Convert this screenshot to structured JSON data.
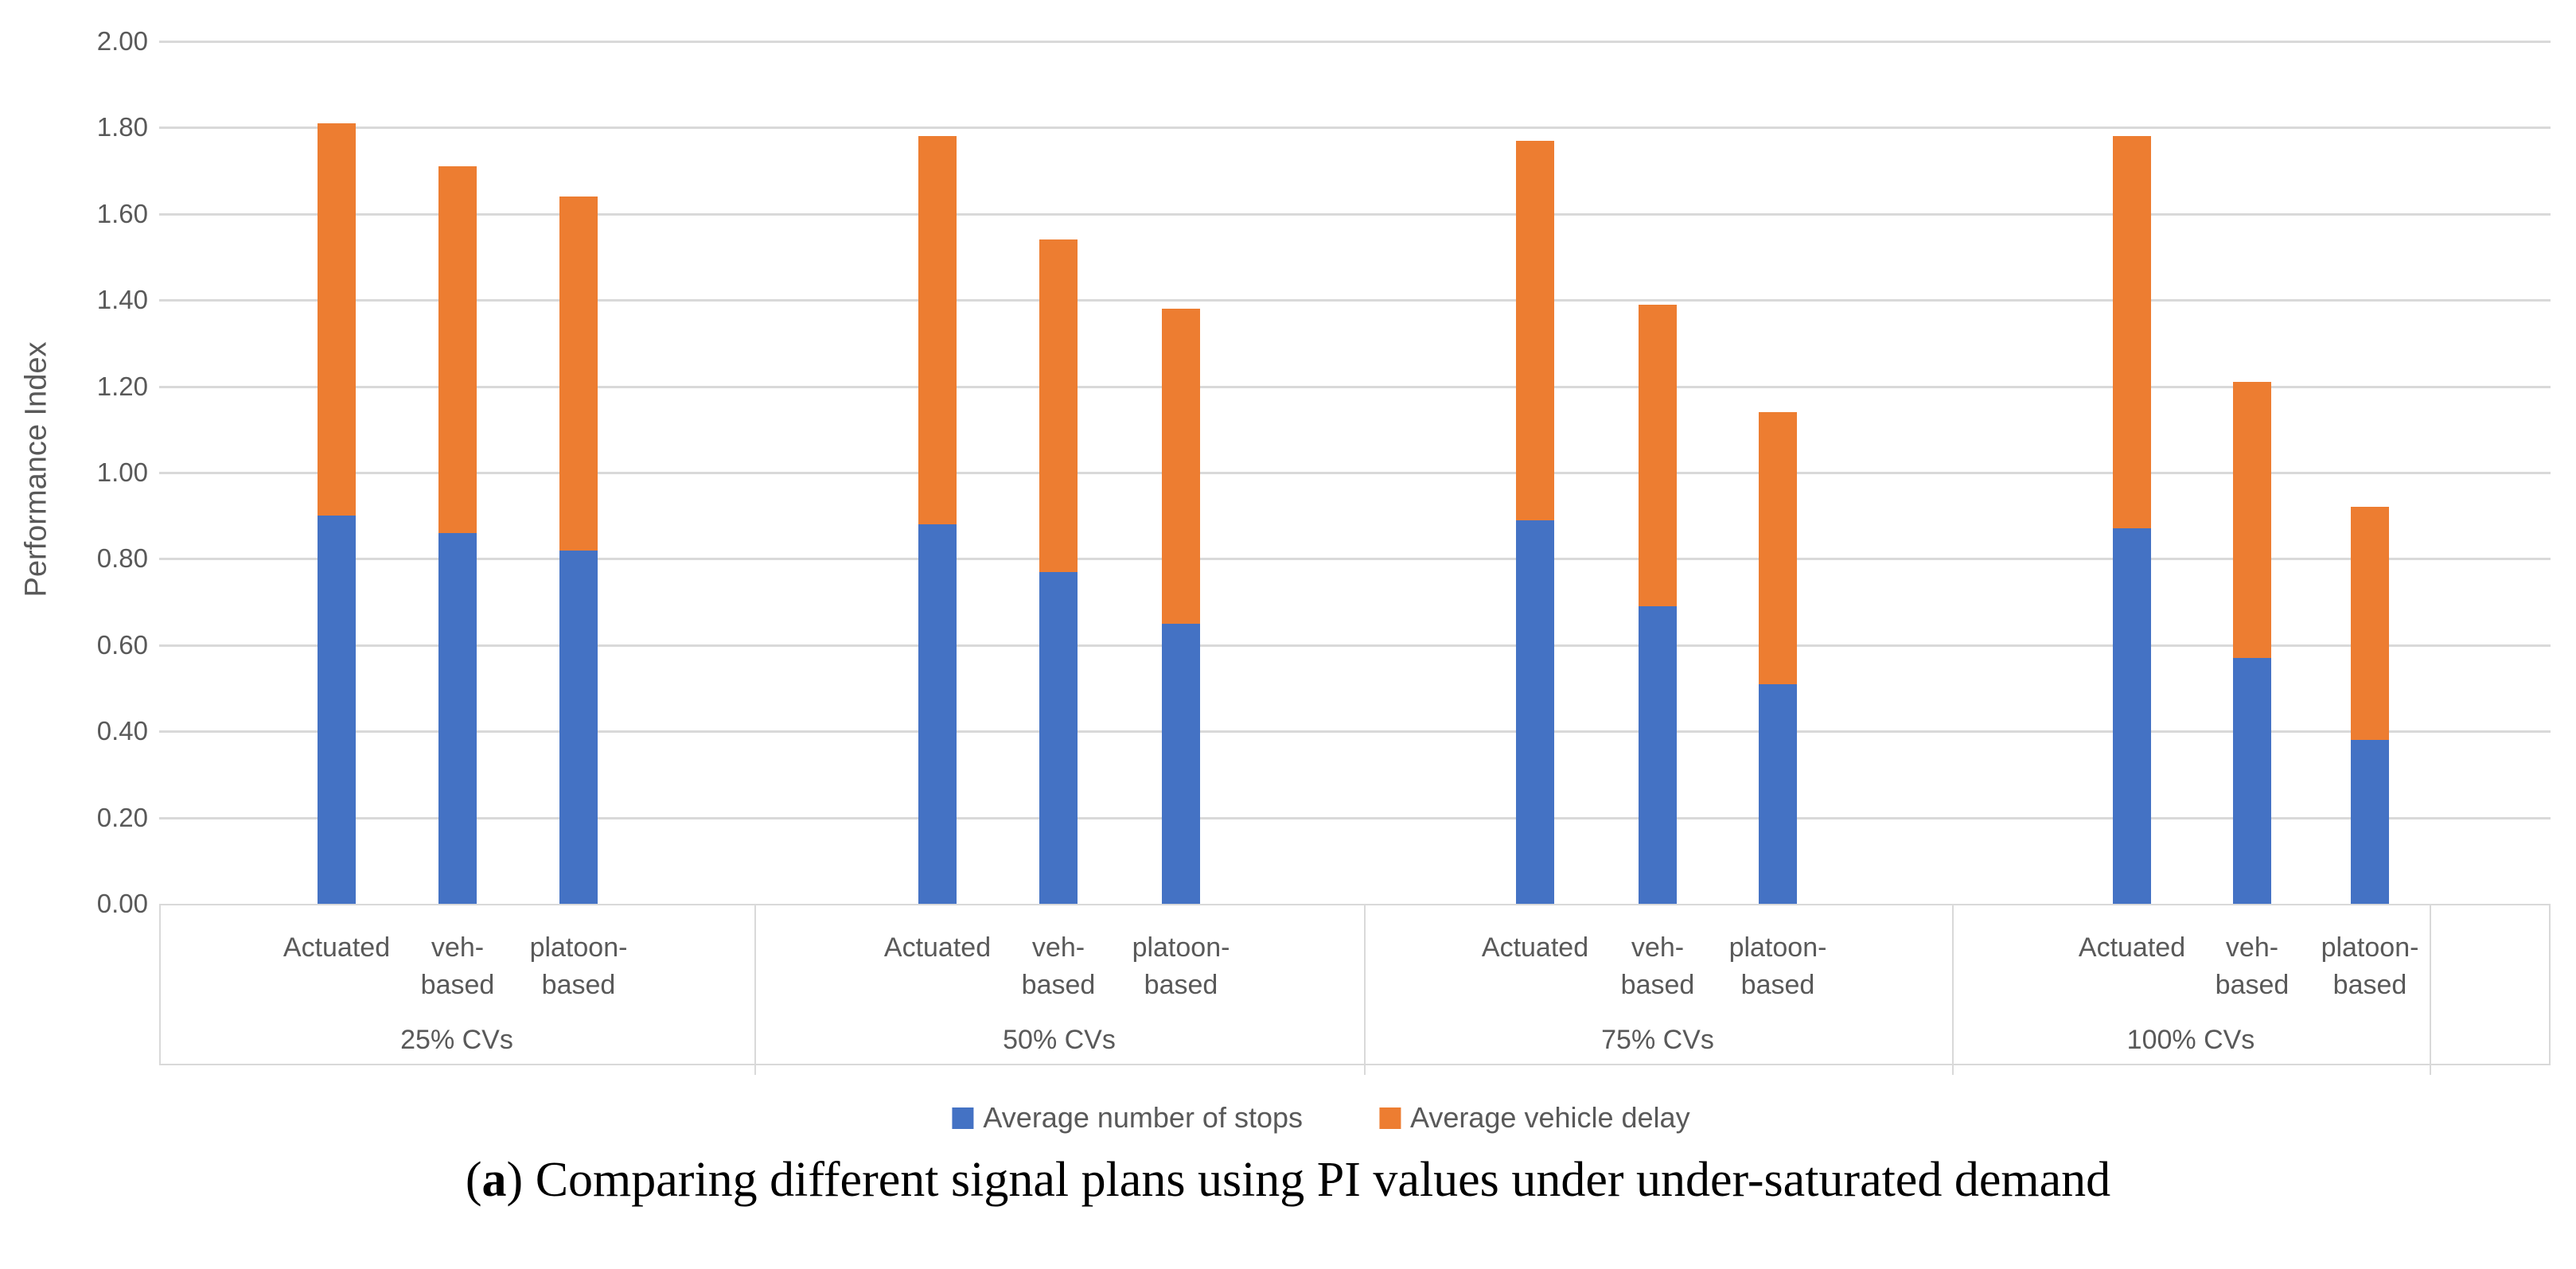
{
  "chart_data": {
    "type": "bar",
    "stacked": true,
    "ylabel": "Performance Index",
    "ylim": [
      0.0,
      2.0
    ],
    "ytick_step": 0.2,
    "y_ticks": [
      "2.00",
      "1.80",
      "1.60",
      "1.40",
      "1.20",
      "1.00",
      "0.80",
      "0.60",
      "0.40",
      "0.20",
      "0.00"
    ],
    "grid": true,
    "legend_position": "bottom",
    "categories_level2": [
      "25% CVs",
      "50% CVs",
      "75% CVs",
      "100% CVs"
    ],
    "categories_level1": [
      "Actuated",
      "veh-based",
      "platoon-based"
    ],
    "plan_label_lines": [
      [
        "Actuated"
      ],
      [
        "veh-",
        "based"
      ],
      [
        "platoon-",
        "based"
      ]
    ],
    "series": [
      {
        "name": "Average number of stops",
        "color": "#4472C4",
        "values": [
          [
            0.9,
            0.86,
            0.82
          ],
          [
            0.88,
            0.77,
            0.65
          ],
          [
            0.89,
            0.69,
            0.51
          ],
          [
            0.87,
            0.57,
            0.38
          ]
        ]
      },
      {
        "name": "Average vehicle delay",
        "color": "#ED7D31",
        "values": [
          [
            0.91,
            0.85,
            0.82
          ],
          [
            0.9,
            0.77,
            0.73
          ],
          [
            0.88,
            0.7,
            0.63
          ],
          [
            0.91,
            0.64,
            0.54
          ]
        ]
      }
    ],
    "stack_totals": [
      [
        1.81,
        1.71,
        1.64
      ],
      [
        1.78,
        1.54,
        1.38
      ],
      [
        1.77,
        1.39,
        1.14
      ],
      [
        1.78,
        1.21,
        0.92
      ]
    ],
    "colors": {
      "stops": "#4472C4",
      "delay": "#ED7D31",
      "gridline": "#D9D9D9",
      "axis_text": "#595959"
    }
  },
  "legend": {
    "items": [
      {
        "label": "Average number of stops",
        "color": "#4472C4"
      },
      {
        "label": "Average vehicle delay",
        "color": "#ED7D31"
      }
    ]
  },
  "caption": {
    "paren_open": "(",
    "letter": "a",
    "rest": ") Comparing different signal plans using PI values under under-saturated demand"
  }
}
